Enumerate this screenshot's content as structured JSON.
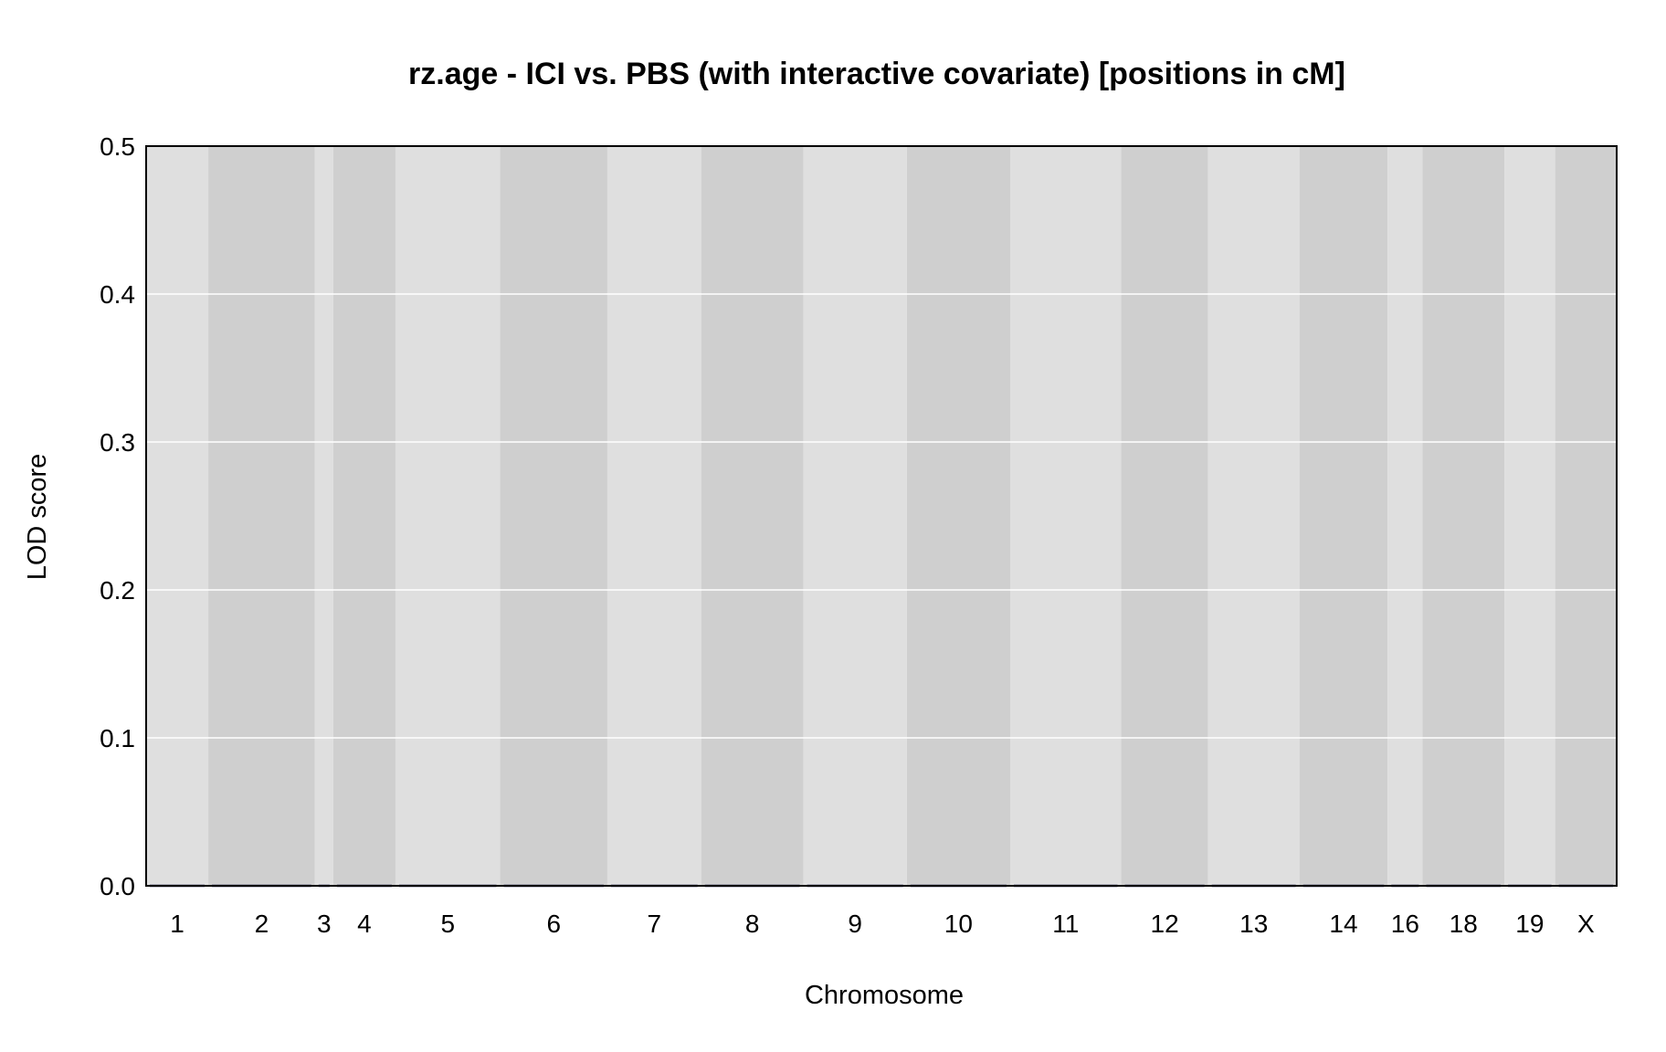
{
  "chart_data": {
    "type": "line",
    "title": "rz.age - ICI vs. PBS (with interactive covariate) [positions in cM]",
    "xlabel": "Chromosome",
    "ylabel": "LOD score",
    "ylim": [
      0,
      0.5
    ],
    "y_ticks": [
      "0.0",
      "0.1",
      "0.2",
      "0.3",
      "0.4",
      "0.5"
    ],
    "grid": "horizontal",
    "chromosomes": [
      {
        "name": "1",
        "start": 0,
        "end": 98,
        "shade": "light"
      },
      {
        "name": "2",
        "start": 98,
        "end": 266,
        "shade": "dark"
      },
      {
        "name": "3",
        "start": 266,
        "end": 295,
        "shade": "light"
      },
      {
        "name": "4",
        "start": 295,
        "end": 393,
        "shade": "dark"
      },
      {
        "name": "5",
        "start": 393,
        "end": 558,
        "shade": "light"
      },
      {
        "name": "6",
        "start": 558,
        "end": 727,
        "shade": "dark"
      },
      {
        "name": "7",
        "start": 727,
        "end": 875,
        "shade": "light"
      },
      {
        "name": "8",
        "start": 875,
        "end": 1036,
        "shade": "dark"
      },
      {
        "name": "9",
        "start": 1036,
        "end": 1199,
        "shade": "light"
      },
      {
        "name": "10",
        "start": 1199,
        "end": 1362,
        "shade": "dark"
      },
      {
        "name": "11",
        "start": 1362,
        "end": 1537,
        "shade": "light"
      },
      {
        "name": "12",
        "start": 1537,
        "end": 1674,
        "shade": "dark"
      },
      {
        "name": "13",
        "start": 1674,
        "end": 1818,
        "shade": "light"
      },
      {
        "name": "14",
        "start": 1818,
        "end": 1957,
        "shade": "dark"
      },
      {
        "name": "16",
        "start": 1957,
        "end": 2012,
        "shade": "light"
      },
      {
        "name": "18",
        "start": 2012,
        "end": 2141,
        "shade": "dark"
      },
      {
        "name": "19",
        "start": 2141,
        "end": 2221,
        "shade": "light"
      },
      {
        "name": "X",
        "start": 2221,
        "end": 2318,
        "shade": "dark"
      }
    ],
    "series": [
      {
        "values": [
          0,
          0,
          0,
          0,
          0,
          0,
          0,
          0,
          0,
          0,
          0,
          0,
          0,
          0,
          0,
          0,
          0,
          0
        ],
        "note_x": "one value per chromosome segment"
      }
    ],
    "colors": {
      "band_light": "#dfdfdf",
      "band_dark": "#cfcfcf",
      "grid": "#ffffff",
      "line": "#1a1a4e",
      "frame": "#000000"
    }
  }
}
